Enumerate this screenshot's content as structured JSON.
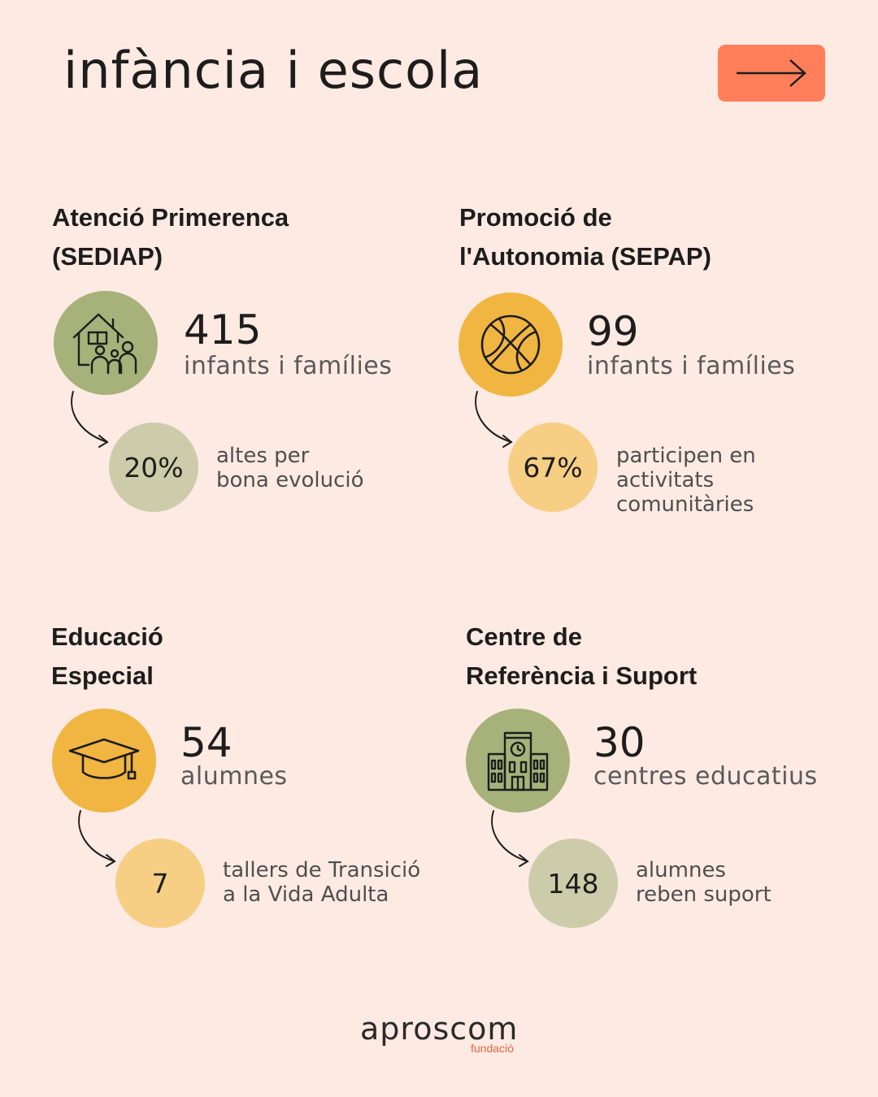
{
  "title": "infància i escola",
  "colors": {
    "background": "#fdeae3",
    "accent_button": "#ff7f5a",
    "green_dark": "#a6b27a",
    "green_light": "#ccccaa",
    "yellow_dark": "#f1b542",
    "yellow_light": "#f6cf85",
    "logo_orange": "#e0663f"
  },
  "next_button": {
    "icon": "arrow-right-icon"
  },
  "sections": [
    {
      "title": "Atenció Primerenca\n(SEDIAP)",
      "icon": "family-house-icon",
      "main_value": "415",
      "main_label": "infants i famílies",
      "sub_value": "20%",
      "sub_label": "altes per\nbona evolució"
    },
    {
      "title": "Promoció de\nl'Autonomia (SEPAP)",
      "icon": "basketball-icon",
      "main_value": "99",
      "main_label": "infants i famílies",
      "sub_value": "67%",
      "sub_label": "participen en\nactivitats\ncomunitàries"
    },
    {
      "title": "Educació\nEspecial",
      "icon": "graduation-cap-icon",
      "main_value": "54",
      "main_label": "alumnes",
      "sub_value": "7",
      "sub_label": "tallers de Transició\na la Vida Adulta"
    },
    {
      "title": "Centre de\nReferència i Suport",
      "icon": "school-building-icon",
      "main_value": "30",
      "main_label": "centres educatius",
      "sub_value": "148",
      "sub_label": "alumnes\nreben suport"
    }
  ],
  "logo": {
    "name": "aproscom",
    "subtitle": "fundació"
  }
}
